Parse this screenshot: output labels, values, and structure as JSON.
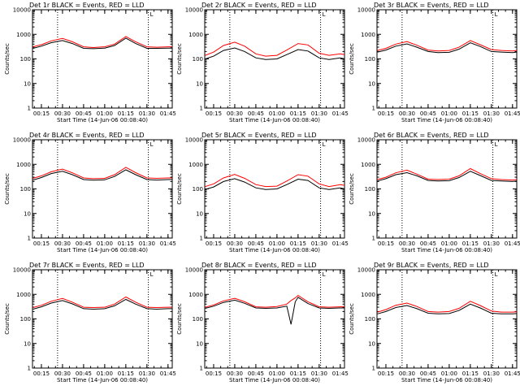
{
  "colors": {
    "events": "#000000",
    "lld": "#ff0000",
    "axis": "#000000",
    "marker": "#000000"
  },
  "shared": {
    "xlabel": "Start Time (14-Jun-06 00:08:40)",
    "ylabel": "Counts/sec",
    "y_ticks": [
      1,
      10,
      100,
      1000,
      10000
    ],
    "y_tick_labels": [
      "1",
      "10",
      "100",
      "1000",
      "10000"
    ],
    "y_scale": "log",
    "ylim": [
      1,
      10000
    ],
    "x_tick_labels": [
      "00:15",
      "00:30",
      "00:45",
      "01:00",
      "01:15",
      "01:30",
      "01:45"
    ],
    "x_ticks_min": [
      15,
      30,
      45,
      60,
      75,
      90,
      105
    ],
    "xlim_min": [
      8.67,
      108
    ],
    "dotted_markers_min": [
      26.5,
      91
    ],
    "corner_mark": "L"
  },
  "chart_data": [
    {
      "type": "line",
      "title": "Det 1r BLACK = Events, RED = LLD",
      "x": [
        9,
        15,
        22,
        30,
        37,
        45,
        52,
        60,
        67,
        75,
        82,
        90,
        97,
        105,
        108
      ],
      "series": [
        {
          "name": "Events",
          "values": [
            270,
            330,
            460,
            560,
            420,
            270,
            260,
            275,
            350,
            700,
            420,
            270,
            270,
            275,
            275
          ]
        },
        {
          "name": "LLD",
          "values": [
            310,
            380,
            540,
            680,
            500,
            310,
            290,
            310,
            400,
            820,
            500,
            310,
            300,
            310,
            310
          ]
        }
      ]
    },
    {
      "type": "line",
      "title": "Det 2r BLACK = Events, RED = LLD",
      "x": [
        9,
        15,
        22,
        30,
        37,
        45,
        52,
        60,
        67,
        75,
        82,
        90,
        97,
        105,
        108
      ],
      "series": [
        {
          "name": "Events",
          "values": [
            100,
            130,
            220,
            280,
            200,
            110,
            95,
            100,
            150,
            240,
            210,
            110,
            95,
            110,
            100
          ]
        },
        {
          "name": "LLD",
          "values": [
            140,
            190,
            350,
            480,
            330,
            160,
            130,
            140,
            230,
            420,
            370,
            170,
            140,
            160,
            150
          ]
        }
      ]
    },
    {
      "type": "line",
      "title": "Det 3r BLACK = Events, RED = LLD",
      "x": [
        9,
        15,
        22,
        30,
        37,
        45,
        52,
        60,
        67,
        75,
        82,
        90,
        97,
        105,
        108
      ],
      "series": [
        {
          "name": "Events",
          "values": [
            190,
            230,
            330,
            410,
            300,
            200,
            180,
            185,
            250,
            450,
            320,
            200,
            190,
            180,
            190
          ]
        },
        {
          "name": "LLD",
          "values": [
            220,
            270,
            400,
            510,
            360,
            230,
            210,
            220,
            300,
            560,
            380,
            240,
            220,
            210,
            220
          ]
        }
      ]
    },
    {
      "type": "line",
      "title": "Det 4r BLACK = Events, RED = LLD",
      "x": [
        9,
        15,
        22,
        30,
        37,
        45,
        52,
        60,
        67,
        75,
        82,
        90,
        97,
        105,
        108
      ],
      "series": [
        {
          "name": "Events",
          "values": [
            230,
            290,
            420,
            520,
            380,
            240,
            225,
            235,
            320,
            600,
            380,
            240,
            230,
            240,
            240
          ]
        },
        {
          "name": "LLD",
          "values": [
            270,
            340,
            500,
            640,
            450,
            280,
            260,
            270,
            380,
            760,
            460,
            280,
            270,
            280,
            280
          ]
        }
      ]
    },
    {
      "type": "line",
      "title": "Det 5r BLACK = Events, RED = LLD",
      "x": [
        9,
        15,
        22,
        30,
        37,
        45,
        52,
        60,
        67,
        75,
        82,
        90,
        97,
        105,
        108
      ],
      "series": [
        {
          "name": "Events",
          "values": [
            95,
            120,
            200,
            260,
            190,
            110,
            95,
            100,
            150,
            250,
            220,
            110,
            95,
            110,
            100
          ]
        },
        {
          "name": "LLD",
          "values": [
            125,
            160,
            280,
            390,
            270,
            150,
            125,
            130,
            210,
            380,
            330,
            160,
            125,
            150,
            140
          ]
        }
      ]
    },
    {
      "type": "line",
      "title": "Det 6r BLACK = Events, RED = LLD",
      "x": [
        9,
        15,
        22,
        30,
        37,
        45,
        52,
        60,
        67,
        75,
        82,
        90,
        97,
        105,
        108
      ],
      "series": [
        {
          "name": "Events",
          "values": [
            210,
            260,
            380,
            460,
            340,
            220,
            210,
            215,
            290,
            520,
            350,
            220,
            210,
            200,
            210
          ]
        },
        {
          "name": "LLD",
          "values": [
            240,
            300,
            450,
            580,
            400,
            250,
            240,
            250,
            340,
            670,
            420,
            260,
            240,
            230,
            240
          ]
        }
      ]
    },
    {
      "type": "line",
      "title": "Det 7r BLACK = Events, RED = LLD",
      "x": [
        9,
        15,
        22,
        30,
        37,
        45,
        52,
        60,
        67,
        75,
        82,
        90,
        97,
        105,
        108
      ],
      "series": [
        {
          "name": "Events",
          "values": [
            250,
            310,
            440,
            560,
            410,
            260,
            250,
            260,
            340,
            620,
            400,
            260,
            250,
            260,
            260
          ]
        },
        {
          "name": "LLD",
          "values": [
            290,
            360,
            520,
            680,
            480,
            300,
            290,
            300,
            400,
            780,
            480,
            300,
            290,
            300,
            300
          ]
        }
      ]
    },
    {
      "type": "line",
      "title": "Det 8r BLACK = Events, RED = LLD",
      "x": [
        9,
        15,
        22,
        30,
        37,
        45,
        52,
        60,
        67,
        70,
        73,
        75,
        82,
        90,
        97,
        105,
        108
      ],
      "series": [
        {
          "name": "Events",
          "values": [
            270,
            330,
            470,
            580,
            430,
            280,
            270,
            280,
            330,
            60,
            500,
            760,
            420,
            280,
            270,
            280,
            280
          ]
        },
        {
          "name": "LLD",
          "values": [
            300,
            370,
            540,
            690,
            500,
            310,
            300,
            320,
            400,
            560,
            720,
            900,
            500,
            310,
            300,
            310,
            310
          ]
        }
      ]
    },
    {
      "type": "line",
      "title": "Det 9r BLACK = Events, RED = LLD",
      "x": [
        9,
        15,
        22,
        30,
        37,
        45,
        52,
        60,
        67,
        75,
        82,
        90,
        97,
        105,
        108
      ],
      "series": [
        {
          "name": "Events",
          "values": [
            160,
            200,
            290,
            350,
            260,
            170,
            160,
            165,
            220,
            400,
            280,
            170,
            160,
            160,
            165
          ]
        },
        {
          "name": "LLD",
          "values": [
            190,
            240,
            360,
            440,
            320,
            200,
            190,
            200,
            270,
            520,
            350,
            210,
            190,
            190,
            195
          ]
        }
      ]
    }
  ]
}
